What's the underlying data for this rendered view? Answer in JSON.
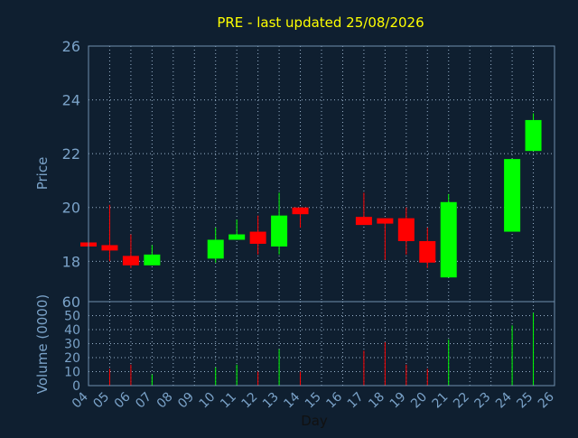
{
  "chart_data": {
    "type": "candlestick",
    "title": "PRE - last updated 25/08/2026",
    "xlabel": "Day",
    "x_ticks": [
      "04",
      "05",
      "06",
      "07",
      "08",
      "09",
      "10",
      "11",
      "12",
      "13",
      "14",
      "15",
      "16",
      "17",
      "18",
      "19",
      "20",
      "21",
      "22",
      "23",
      "24",
      "25",
      "26"
    ],
    "price_panel": {
      "ylabel": "Price",
      "ylim": [
        16.5,
        26
      ],
      "y_ticks": [
        "18",
        "20",
        "22",
        "24",
        "26"
      ],
      "grid": true,
      "candles": [
        {
          "day": 4,
          "open": 18.7,
          "close": 18.55,
          "high": 18.75,
          "low": 18.5,
          "direction": "down"
        },
        {
          "day": 5,
          "open": 18.6,
          "close": 18.4,
          "high": 20.1,
          "low": 18.0,
          "direction": "down"
        },
        {
          "day": 6,
          "open": 18.2,
          "close": 17.85,
          "high": 19.0,
          "low": 17.75,
          "direction": "down"
        },
        {
          "day": 7,
          "open": 17.85,
          "close": 18.25,
          "high": 18.6,
          "low": 17.85,
          "direction": "up"
        },
        {
          "day": 10,
          "open": 18.1,
          "close": 18.8,
          "high": 19.25,
          "low": 17.95,
          "direction": "up"
        },
        {
          "day": 11,
          "open": 18.8,
          "close": 19.0,
          "high": 19.55,
          "low": 18.8,
          "direction": "up"
        },
        {
          "day": 12,
          "open": 19.1,
          "close": 18.65,
          "high": 19.7,
          "low": 18.25,
          "direction": "down"
        },
        {
          "day": 13,
          "open": 18.55,
          "close": 19.7,
          "high": 20.55,
          "low": 18.25,
          "direction": "up"
        },
        {
          "day": 14,
          "open": 20.0,
          "close": 19.75,
          "high": 20.0,
          "low": 19.25,
          "direction": "down"
        },
        {
          "day": 17,
          "open": 19.65,
          "close": 19.35,
          "high": 20.55,
          "low": 19.35,
          "direction": "down"
        },
        {
          "day": 18,
          "open": 19.6,
          "close": 19.4,
          "high": 19.6,
          "low": 18.05,
          "direction": "down"
        },
        {
          "day": 19,
          "open": 19.6,
          "close": 18.75,
          "high": 20.0,
          "low": 18.25,
          "direction": "down"
        },
        {
          "day": 20,
          "open": 18.75,
          "close": 17.95,
          "high": 19.25,
          "low": 17.75,
          "direction": "down"
        },
        {
          "day": 21,
          "open": 17.4,
          "close": 20.2,
          "high": 20.5,
          "low": 17.4,
          "direction": "up"
        },
        {
          "day": 24,
          "open": 19.1,
          "close": 21.8,
          "high": 21.8,
          "low": 19.1,
          "direction": "up"
        },
        {
          "day": 25,
          "open": 22.1,
          "close": 23.25,
          "high": 23.5,
          "low": 22.1,
          "direction": "up"
        }
      ]
    },
    "volume_panel": {
      "ylabel": "Volume (0000)",
      "ylim": [
        0,
        60
      ],
      "y_ticks": [
        "0",
        "10",
        "20",
        "30",
        "40",
        "50",
        "60"
      ],
      "grid": true,
      "bars": [
        {
          "day": 5,
          "value": 12,
          "direction": "down"
        },
        {
          "day": 6,
          "value": 15,
          "direction": "down"
        },
        {
          "day": 7,
          "value": 8,
          "direction": "up"
        },
        {
          "day": 10,
          "value": 13,
          "direction": "up"
        },
        {
          "day": 11,
          "value": 15,
          "direction": "up"
        },
        {
          "day": 12,
          "value": 10,
          "direction": "down"
        },
        {
          "day": 13,
          "value": 26,
          "direction": "up"
        },
        {
          "day": 14,
          "value": 10,
          "direction": "down"
        },
        {
          "day": 17,
          "value": 25,
          "direction": "down"
        },
        {
          "day": 18,
          "value": 31,
          "direction": "down"
        },
        {
          "day": 19,
          "value": 15,
          "direction": "down"
        },
        {
          "day": 20,
          "value": 12,
          "direction": "down"
        },
        {
          "day": 21,
          "value": 33,
          "direction": "up"
        },
        {
          "day": 24,
          "value": 43,
          "direction": "up"
        },
        {
          "day": 25,
          "value": 52,
          "direction": "up"
        }
      ]
    },
    "colors": {
      "background": "#0f1f30",
      "title": "#ffff00",
      "axis_text": "#7aa2c8",
      "frame": "#6f8fae",
      "grid": "#9ab3cc",
      "up": "#00ff00",
      "down": "#ff0000"
    }
  }
}
